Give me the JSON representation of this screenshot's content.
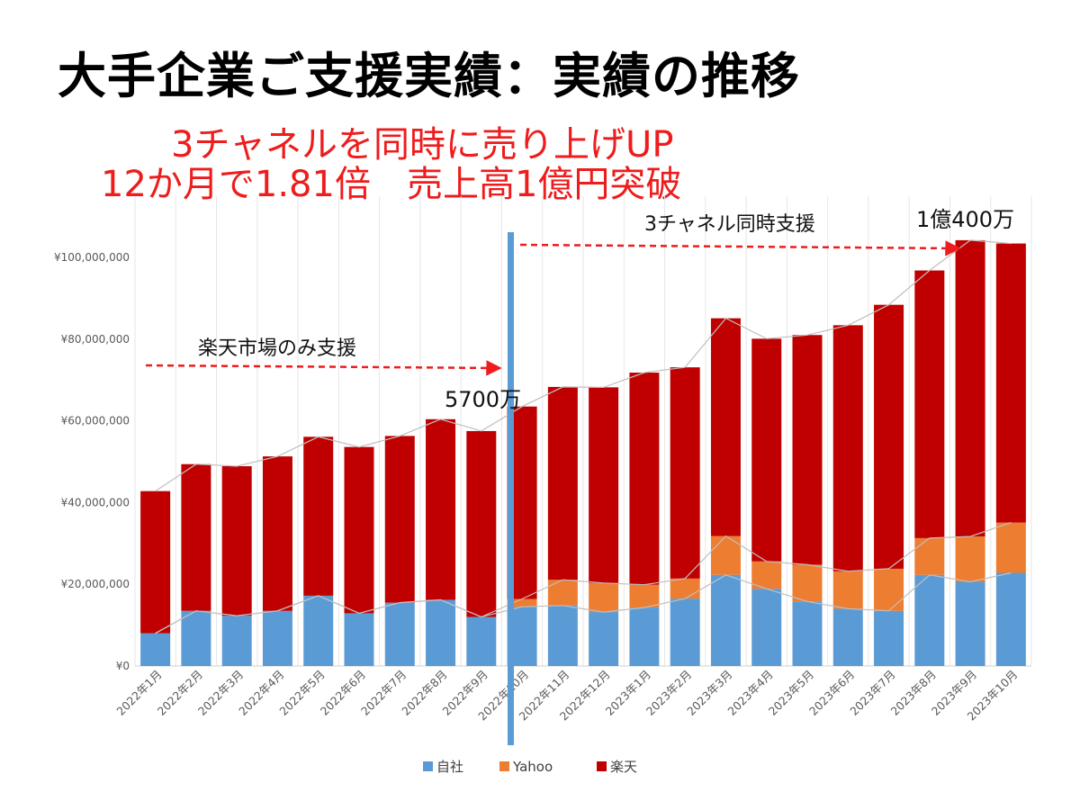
{
  "slide": {
    "title": "大手企業ご支援実績：実績の推移",
    "subtitle_line1": "3チャネルを同時に売り上げUP",
    "subtitle_line2": "12か月で1.81倍　売上高1億円突破"
  },
  "annotations": {
    "phase1_label": "楽天市場のみ支援",
    "phase2_label": "3チャネル同時支援",
    "value_5700": "5700万",
    "value_1oku": "1億400万"
  },
  "colors": {
    "jisha": "#5b9bd5",
    "yahoo": "#ed7d31",
    "rakuten": "#c00000",
    "divider": "#5b9bd5",
    "arrow": "#ee1c1c",
    "subtitle": "#ee1c1c"
  },
  "chart_data": {
    "type": "bar",
    "stacked": true,
    "categories": [
      "2022年1月",
      "2022年2月",
      "2022年3月",
      "2022年4月",
      "2022年5月",
      "2022年6月",
      "2022年7月",
      "2022年8月",
      "2022年9月",
      "2022年10月",
      "2022年11月",
      "2022年12月",
      "2023年1月",
      "2023年2月",
      "2023年3月",
      "2023年4月",
      "2023年5月",
      "2023年6月",
      "2023年7月",
      "2023年8月",
      "2023年9月",
      "2023年10月"
    ],
    "series": [
      {
        "name": "自社",
        "color": "#5b9bd5",
        "values": [
          8000000,
          13500000,
          12300000,
          13500000,
          17200000,
          12900000,
          15500000,
          16200000,
          12000000,
          14500000,
          14800000,
          13200000,
          14300000,
          16500000,
          22300000,
          18900000,
          15800000,
          14000000,
          13500000,
          22300000,
          20600000,
          22800000
        ]
      },
      {
        "name": "Yahoo",
        "color": "#ed7d31",
        "values": [
          0,
          0,
          0,
          0,
          0,
          0,
          0,
          0,
          0,
          1900000,
          6300000,
          7100000,
          5600000,
          4900000,
          9500000,
          6700000,
          9000000,
          9200000,
          10300000,
          9000000,
          11100000,
          12300000
        ]
      },
      {
        "name": "楽天",
        "color": "#c00000",
        "values": [
          34800000,
          35900000,
          36600000,
          37800000,
          38900000,
          40700000,
          40800000,
          44200000,
          45500000,
          47100000,
          47200000,
          47900000,
          51900000,
          51700000,
          53300000,
          54500000,
          56200000,
          60200000,
          64600000,
          65500000,
          72500000,
          68300000
        ]
      }
    ],
    "y_ticks": [
      "¥0",
      "¥20,000,000",
      "¥40,000,000",
      "¥60,000,000",
      "¥80,000,000",
      "¥100,000,000"
    ],
    "ylim": [
      0,
      105000000
    ],
    "legend_position": "bottom",
    "grid": "vertical"
  }
}
